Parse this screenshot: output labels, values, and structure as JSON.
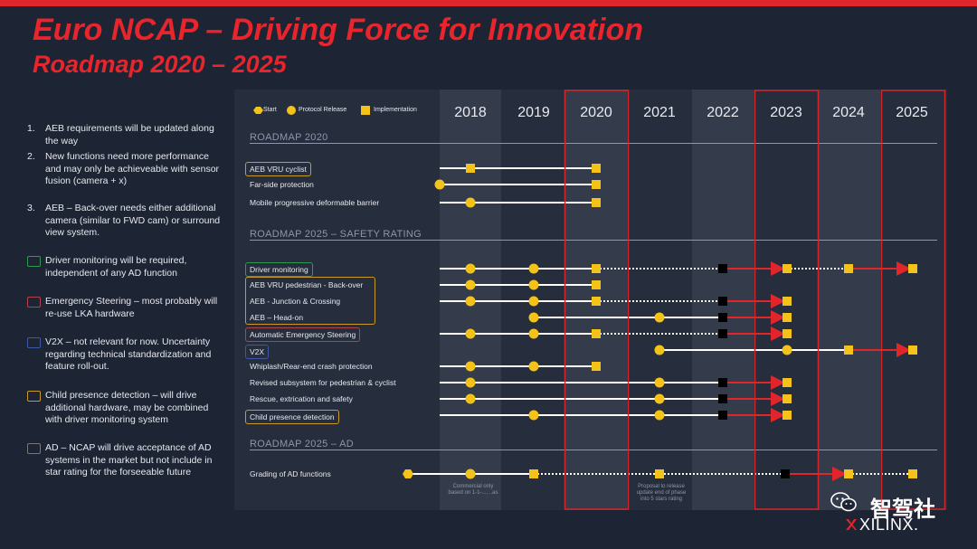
{
  "title_line1": "Euro NCAP – Driving Force for Innovation",
  "title_line2": "Roadmap 2020 – 2025",
  "notes": [
    {
      "num": "1.",
      "text": "AEB requirements will be updated along the way"
    },
    {
      "num": "2.",
      "text": "New functions need more performance and may only be achieveable with sensor fusion (camera + x)"
    },
    {
      "num": "3.",
      "text": "AEB – Back-over needs either additional camera (similar to FWD cam) or surround view system."
    }
  ],
  "legend_items": [
    {
      "text": "Driver monitoring will be required, independent of any AD function",
      "color": "#2e9a4c"
    },
    {
      "text": "Emergency Steering – most probably will re-use LKA hardware",
      "color": "#b0434b"
    },
    {
      "text": "V2X – not relevant for now. Uncertainty regarding technical standardization and feature roll-out.",
      "color": "#3d58a5"
    },
    {
      "text": "Child presence detection – will drive additional hardware, may be combined with driver monitoring system",
      "color": "#c89a2a"
    },
    {
      "text": "AD – NCAP will drive acceptance of AD systems in the market but not include in star rating for the forseeable future",
      "color": "#777777"
    }
  ],
  "chart_legend": {
    "start": "Start",
    "protocol": "Protocol Release",
    "implementation": "Implementation"
  },
  "years": [
    "2018",
    "2019",
    "2020",
    "2021",
    "2022",
    "2023",
    "2024",
    "2025"
  ],
  "sections": [
    "ROADMAP 2020",
    "ROADMAP 2025 – SAFETY RATING",
    "ROADMAP 2025 – AD"
  ],
  "rows": [
    "AEB VRU cyclist",
    "Far-side protection",
    "Mobile progressive deformable barrier",
    "Driver monitoring",
    "AEB VRU pedestrian - Back-over",
    "AEB - Junction & Crossing",
    "AEB – Head-on",
    "Automatic Emergency Steering",
    "V2X",
    "Whiplash/Rear-end crash protection",
    "Revised subsystem for pedestrian & cyclist",
    "Rescue, extrication and safety",
    "Child presence detection",
    "Grading of AD functions"
  ],
  "small_notes": {
    "left": "Commercial only\nbased on 1-1-..., ..as",
    "right": "Proposal to release\nupdate end of phase\ninto 5 stars rating"
  },
  "watermark": {
    "brand": "智驾社",
    "company": "XILINX."
  },
  "colors": {
    "accent_red": "#e0262b",
    "marker_yellow": "#f5c21a",
    "bg": "#1d2433"
  }
}
